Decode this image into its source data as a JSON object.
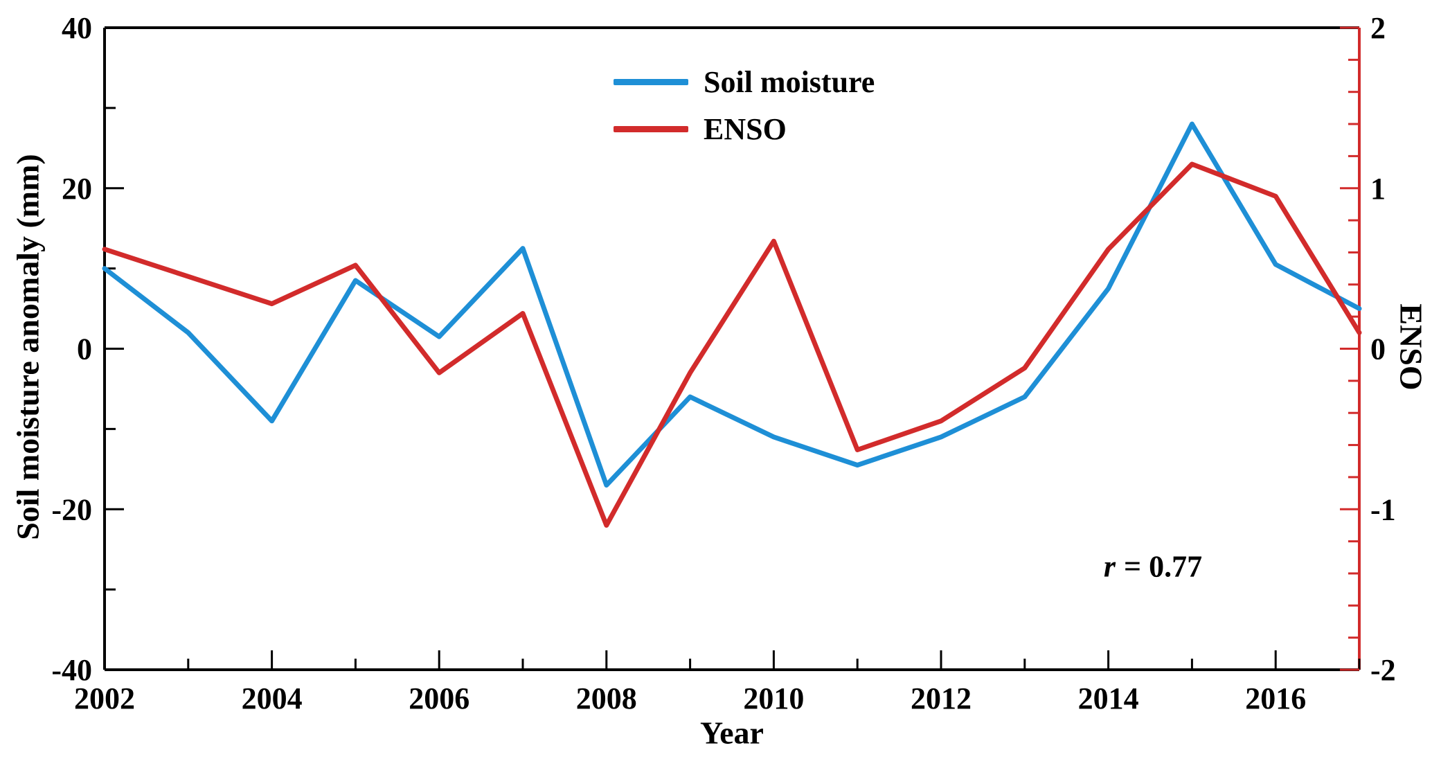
{
  "chart_data": {
    "type": "line",
    "x": [
      2002,
      2003,
      2004,
      2005,
      2006,
      2007,
      2008,
      2009,
      2010,
      2011,
      2012,
      2013,
      2014,
      2015,
      2016,
      2017
    ],
    "series": [
      {
        "name": "Soil moisture",
        "axis": "left",
        "color": "#1e8fd6",
        "values": [
          10,
          2,
          -9,
          8.5,
          1.5,
          12.5,
          -17,
          -6,
          -11,
          -14.5,
          -11,
          -6,
          7.5,
          28,
          10.5,
          5
        ]
      },
      {
        "name": "ENSO",
        "axis": "right",
        "color": "#d22b2b",
        "values": [
          0.62,
          0.45,
          0.28,
          0.52,
          -0.15,
          0.22,
          -1.1,
          -0.15,
          0.67,
          -0.63,
          -0.45,
          -0.12,
          0.62,
          1.15,
          0.95,
          0.1
        ]
      }
    ],
    "x_axis": {
      "label": "Year",
      "min": 2002,
      "max": 2017,
      "major_ticks": [
        2002,
        2004,
        2006,
        2008,
        2010,
        2012,
        2014,
        2016
      ],
      "minor_step": 1
    },
    "left_axis": {
      "label": "Soil moisture anomaly (mm)",
      "min": -40,
      "max": 40,
      "major_ticks": [
        -40,
        -20,
        0,
        20,
        40
      ],
      "minor_step": 10
    },
    "right_axis": {
      "label": "ENSO",
      "min": -2,
      "max": 2,
      "major_ticks": [
        -2,
        -1,
        0,
        1,
        2
      ],
      "minor_step": 0.2,
      "color": "#d22b2b"
    },
    "legend": [
      {
        "label": "Soil moisture",
        "color": "#1e8fd6"
      },
      {
        "label": "ENSO",
        "color": "#d22b2b"
      }
    ],
    "annotation": {
      "r_label": "r",
      "value": "= 0.77"
    },
    "grid": false,
    "legend_position": "top-center-inside"
  }
}
